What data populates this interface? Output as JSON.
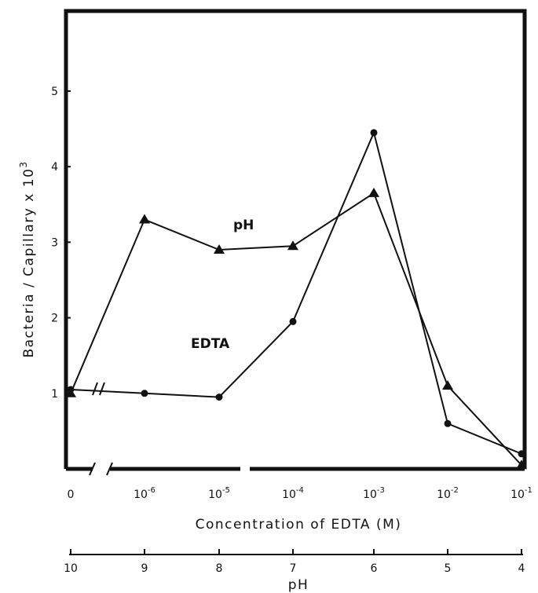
{
  "chart_data": {
    "type": "line",
    "title": "",
    "xlabel": "Concentration of EDTA (M)",
    "ylabel": "Bacteria / Capillary x 10",
    "ylabel_exponent": "3",
    "secondary_xlabel": "pH",
    "ylim": [
      0,
      6
    ],
    "yticks": [
      "1",
      "2",
      "3",
      "4",
      "5"
    ],
    "x_ticks": [
      {
        "base": "0",
        "exp": ""
      },
      {
        "base": "10",
        "exp": "-6"
      },
      {
        "base": "10",
        "exp": "-5"
      },
      {
        "base": "10",
        "exp": "-4"
      },
      {
        "base": "10",
        "exp": "-3"
      },
      {
        "base": "10",
        "exp": "-2"
      },
      {
        "base": "10",
        "exp": "-1"
      }
    ],
    "ph_ticks": [
      "10",
      "9",
      "8",
      "7",
      "6",
      "5",
      "4"
    ],
    "axis_break": true,
    "grid": false,
    "series": [
      {
        "name": "pH",
        "marker": "triangle",
        "x": [
          10,
          9,
          8,
          7,
          6,
          5,
          4
        ],
        "values": [
          1.0,
          3.3,
          2.9,
          2.95,
          3.65,
          1.1,
          0.05
        ]
      },
      {
        "name": "EDTA",
        "marker": "circle",
        "x": [
          "0",
          "10^-6",
          "10^-5",
          "10^-4",
          "10^-3",
          "10^-2",
          "10^-1"
        ],
        "values": [
          1.05,
          1.0,
          0.95,
          1.95,
          4.45,
          0.6,
          0.2
        ]
      }
    ],
    "series_label_positions": [
      "upper-middle",
      "middle-left"
    ]
  },
  "colors": {
    "ink": "#111111",
    "background": "#ffffff"
  }
}
